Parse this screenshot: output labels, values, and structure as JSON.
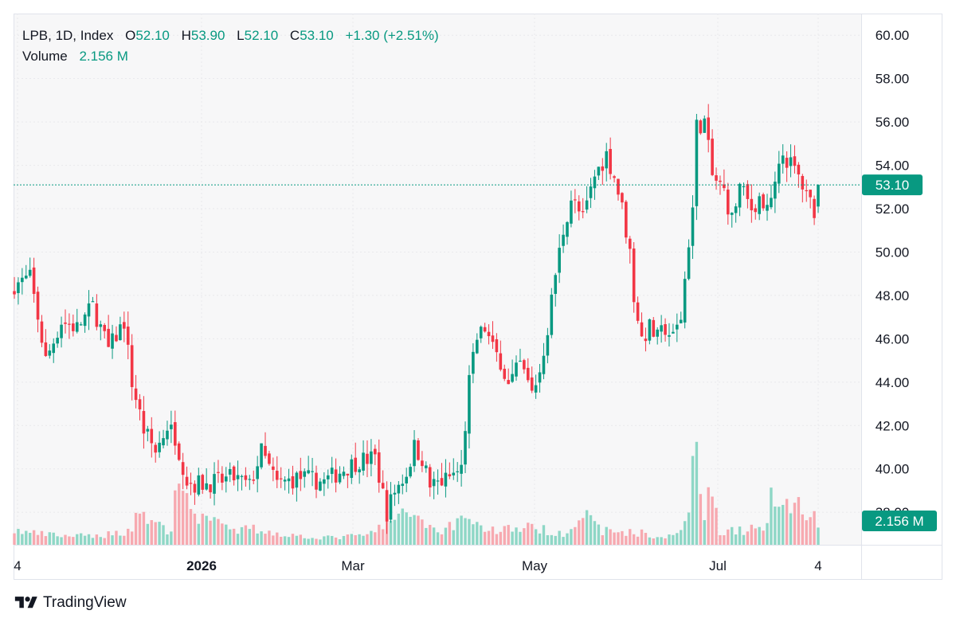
{
  "legend": {
    "symbol": "LPB, 1D, Index",
    "open_label": "O",
    "open": "52.10",
    "high_label": "H",
    "high": "53.90",
    "low_label": "L",
    "low": "52.10",
    "close_label": "C",
    "close": "53.10",
    "change": "+1.30 (+2.51%)",
    "volume_label": "Volume",
    "volume": "2.156 M"
  },
  "brand": {
    "name": "TradingView"
  },
  "colors": {
    "up": "#089981",
    "down": "#F23645",
    "up_vol": "#8ED7C6",
    "down_vol": "#F7A9B0",
    "grid": "#E9E9EC",
    "bg": "#F7F7F8"
  },
  "chart_data": {
    "type": "candlestick",
    "price_axis": {
      "min": 36.5,
      "max": 61,
      "ticks": [
        60,
        58,
        56,
        54,
        52,
        50,
        48,
        46,
        44,
        42,
        40,
        38
      ]
    },
    "x_tick_labels": [
      "4",
      "2026",
      "Mar",
      "May",
      "Jul",
      "4"
    ],
    "last_price_label": "53.10",
    "last_volume_label": "2.156 M",
    "waypoints": [
      [
        0,
        48.5
      ],
      [
        4,
        48.8
      ],
      [
        6,
        47.0
      ],
      [
        8,
        45.0
      ],
      [
        12,
        46.8
      ],
      [
        16,
        46.5
      ],
      [
        20,
        47.5
      ],
      [
        24,
        45.5
      ],
      [
        28,
        46.8
      ],
      [
        30,
        44.0
      ],
      [
        33,
        41.8
      ],
      [
        36,
        40.8
      ],
      [
        39,
        42.0
      ],
      [
        41,
        41.5
      ],
      [
        44,
        39.5
      ],
      [
        46,
        39.3
      ],
      [
        52,
        39.4
      ],
      [
        56,
        39.6
      ],
      [
        60,
        39.2
      ],
      [
        63,
        40.8
      ],
      [
        67,
        39.3
      ],
      [
        73,
        39.6
      ],
      [
        79,
        39.4
      ],
      [
        84,
        40.0
      ],
      [
        88,
        40.4
      ],
      [
        92,
        40.5
      ],
      [
        95,
        38.0
      ],
      [
        97,
        39.0
      ],
      [
        100,
        39.8
      ],
      [
        102,
        41.0
      ],
      [
        104,
        40.5
      ],
      [
        106,
        39.2
      ],
      [
        110,
        39.5
      ],
      [
        114,
        40.0
      ],
      [
        116,
        44.0
      ],
      [
        118,
        46.0
      ],
      [
        120,
        46.5
      ],
      [
        122,
        45.5
      ],
      [
        124,
        45.0
      ],
      [
        126,
        43.8
      ],
      [
        129,
        44.8
      ],
      [
        132,
        43.5
      ],
      [
        134,
        44.5
      ],
      [
        136,
        46.5
      ],
      [
        138,
        49.0
      ],
      [
        140,
        51.0
      ],
      [
        142,
        52.5
      ],
      [
        145,
        51.5
      ],
      [
        148,
        53.5
      ],
      [
        151,
        54.5
      ],
      [
        153,
        53.5
      ],
      [
        155,
        52.0
      ],
      [
        157,
        50.0
      ],
      [
        158,
        48.0
      ],
      [
        160,
        46.0
      ],
      [
        162,
        46.5
      ],
      [
        164,
        46.0
      ],
      [
        166,
        46.5
      ],
      [
        168,
        46.0
      ],
      [
        170,
        47.0
      ],
      [
        172,
        50.5
      ],
      [
        173,
        52.0
      ],
      [
        174,
        55.8
      ],
      [
        176,
        56.0
      ],
      [
        178,
        53.5
      ],
      [
        181,
        52.8
      ],
      [
        183,
        51.5
      ],
      [
        185,
        53.0
      ],
      [
        188,
        52.0
      ],
      [
        190,
        52.5
      ],
      [
        192,
        51.8
      ],
      [
        194,
        53.0
      ],
      [
        196,
        54.5
      ],
      [
        198,
        54.0
      ],
      [
        200,
        53.5
      ],
      [
        202,
        52.5
      ],
      [
        204,
        52.0
      ],
      [
        205,
        53.1
      ]
    ],
    "volume_waypoints": [
      [
        0,
        0.12
      ],
      [
        4,
        0.1
      ],
      [
        10,
        0.08
      ],
      [
        20,
        0.07
      ],
      [
        30,
        0.12
      ],
      [
        31,
        0.3
      ],
      [
        40,
        0.1
      ],
      [
        42,
        0.7
      ],
      [
        46,
        0.2
      ],
      [
        50,
        0.28
      ],
      [
        55,
        0.1
      ],
      [
        60,
        0.14
      ],
      [
        70,
        0.08
      ],
      [
        80,
        0.06
      ],
      [
        90,
        0.08
      ],
      [
        95,
        0.18
      ],
      [
        102,
        0.28
      ],
      [
        108,
        0.1
      ],
      [
        114,
        0.22
      ],
      [
        116,
        0.25
      ],
      [
        120,
        0.12
      ],
      [
        130,
        0.15
      ],
      [
        140,
        0.1
      ],
      [
        145,
        0.25
      ],
      [
        150,
        0.12
      ],
      [
        160,
        0.1
      ],
      [
        165,
        0.05
      ],
      [
        170,
        0.12
      ],
      [
        172,
        0.4
      ],
      [
        174,
        0.95
      ],
      [
        176,
        0.3
      ],
      [
        178,
        0.45
      ],
      [
        180,
        0.12
      ],
      [
        186,
        0.12
      ],
      [
        192,
        0.15
      ],
      [
        193,
        0.5
      ],
      [
        196,
        0.4
      ],
      [
        198,
        0.3
      ],
      [
        200,
        0.35
      ],
      [
        203,
        0.25
      ],
      [
        205,
        0.18
      ]
    ]
  }
}
